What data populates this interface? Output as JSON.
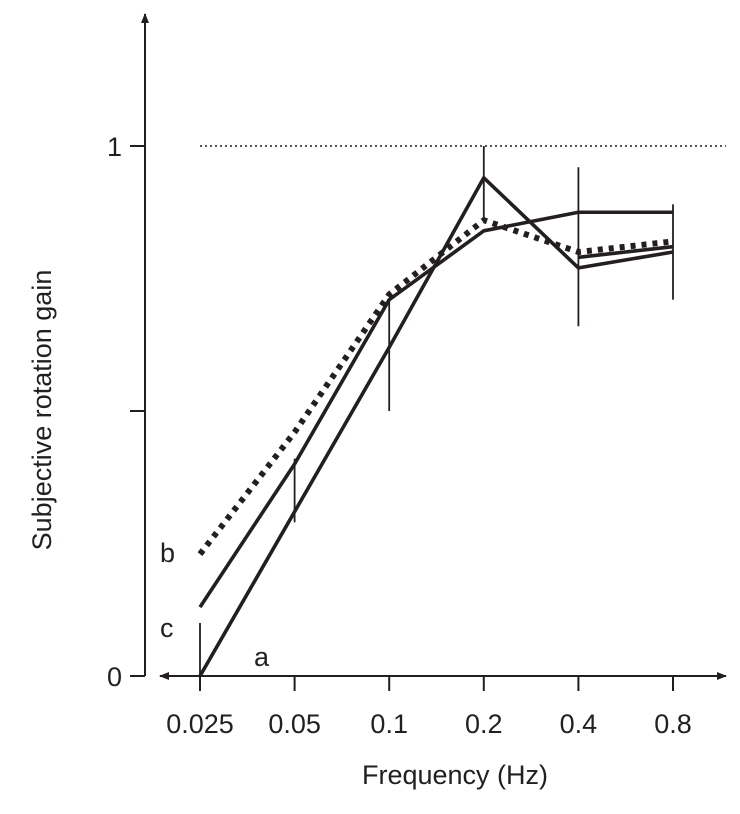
{
  "chart_data": {
    "type": "line",
    "title": "",
    "xlabel": "Frequency (Hz)",
    "ylabel": "Subjective rotation gain",
    "x": [
      0.025,
      0.05,
      0.1,
      0.2,
      0.4,
      0.8
    ],
    "x_tick_labels": [
      "0.025",
      "0.05",
      "0.1",
      "0.2",
      "0.4",
      "0.8"
    ],
    "x_scale": "log2",
    "y_ticks": [
      0,
      0.5,
      1
    ],
    "y_tick_labels": [
      "0",
      "",
      "1"
    ],
    "ylim": [
      0,
      1.25
    ],
    "reference_line": {
      "y": 1,
      "style": "dotted"
    },
    "series": [
      {
        "name": "a",
        "style": "solid",
        "values": [
          0,
          0.31,
          0.62,
          0.94,
          0.77,
          0.8
        ]
      },
      {
        "name": "b",
        "style": "dotted",
        "values": [
          0.23,
          0.46,
          0.72,
          0.86,
          0.8,
          0.82
        ]
      },
      {
        "name": "c",
        "style": "solid",
        "values": [
          0.13,
          0.4,
          0.71,
          0.84,
          0.875,
          0.875
        ]
      },
      {
        "name": "",
        "style": "solid",
        "values": [
          null,
          null,
          null,
          null,
          0.79,
          0.81
        ]
      }
    ],
    "error_bars": [
      [
        0,
        0.1
      ],
      [
        0.29,
        0.41
      ],
      [
        0.5,
        0.71
      ],
      [
        0.86,
        1.0
      ],
      [
        0.66,
        0.96
      ],
      [
        0.71,
        0.89
      ]
    ],
    "grid": false,
    "legend": "inline labels at left"
  }
}
